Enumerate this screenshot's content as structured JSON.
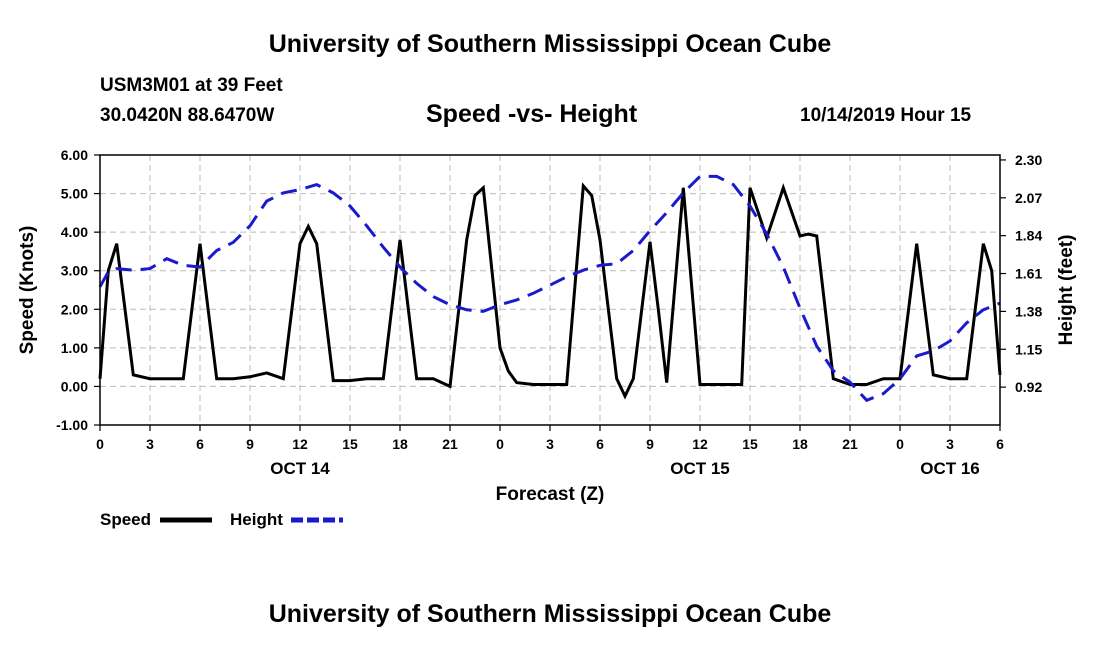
{
  "header": {
    "title": "University of Southern Mississippi Ocean Cube",
    "station": "USM3M01 at 39 Feet",
    "coords": "30.0420N 88.6470W",
    "date": "10/14/2019 Hour 15"
  },
  "footer": {
    "title": "University of Southern Mississippi Ocean Cube"
  },
  "colors": {
    "speed": "#000000",
    "height": "#1a1acc",
    "grid": "#bbbbbb"
  },
  "chart_data": {
    "type": "line",
    "title": "Speed -vs- Height",
    "xlabel": "Forecast (Z)",
    "ylabel": "Speed (Knots)",
    "ylabel_right": "Height (feet)",
    "x_unit": "hours since Oct 14 00Z",
    "xlim": [
      0,
      54
    ],
    "ylim": [
      -1,
      6
    ],
    "ylim_right": [
      0.69,
      2.33
    ],
    "x_ticks": [
      {
        "x": 0,
        "label": "0"
      },
      {
        "x": 3,
        "label": "3"
      },
      {
        "x": 6,
        "label": "6"
      },
      {
        "x": 9,
        "label": "9"
      },
      {
        "x": 12,
        "label": "12"
      },
      {
        "x": 15,
        "label": "15"
      },
      {
        "x": 18,
        "label": "18"
      },
      {
        "x": 21,
        "label": "21"
      },
      {
        "x": 24,
        "label": "0"
      },
      {
        "x": 27,
        "label": "3"
      },
      {
        "x": 30,
        "label": "6"
      },
      {
        "x": 33,
        "label": "9"
      },
      {
        "x": 36,
        "label": "12"
      },
      {
        "x": 39,
        "label": "15"
      },
      {
        "x": 42,
        "label": "18"
      },
      {
        "x": 45,
        "label": "21"
      },
      {
        "x": 48,
        "label": "0"
      },
      {
        "x": 51,
        "label": "3"
      },
      {
        "x": 54,
        "label": "6"
      }
    ],
    "day_labels": [
      {
        "x": 12,
        "label": "OCT 14"
      },
      {
        "x": 36,
        "label": "OCT 15"
      },
      {
        "x": 51,
        "label": "OCT 16"
      }
    ],
    "y_ticks": [
      "-1.00",
      "0.00",
      "1.00",
      "2.00",
      "3.00",
      "4.00",
      "5.00",
      "6.00"
    ],
    "y_ticks_right": [
      "0.92",
      "1.15",
      "1.38",
      "1.61",
      "1.84",
      "2.07",
      "2.30"
    ],
    "legend": [
      {
        "name": "Speed",
        "style": "solid"
      },
      {
        "name": "Height",
        "style": "dashed"
      }
    ],
    "series": [
      {
        "name": "Speed",
        "axis": "left",
        "x": [
          0,
          0.5,
          1,
          2,
          3,
          4,
          5,
          6,
          7,
          8,
          9,
          10,
          11,
          12,
          12.5,
          13,
          14,
          15,
          16,
          17,
          18,
          19,
          20,
          21,
          22,
          22.5,
          23,
          24,
          24.5,
          25,
          26,
          27,
          28,
          29,
          29.5,
          30,
          31,
          31.5,
          32,
          33,
          33.5,
          34,
          35,
          36,
          37,
          38,
          38.5,
          39,
          40,
          41,
          42,
          42.5,
          43,
          44,
          45,
          46,
          47,
          48,
          49,
          50,
          51,
          52,
          53,
          53.5,
          54
        ],
        "values": [
          0.2,
          3.0,
          3.7,
          0.3,
          0.2,
          0.2,
          0.2,
          3.7,
          0.2,
          0.2,
          0.25,
          0.35,
          0.2,
          3.7,
          4.15,
          3.7,
          0.15,
          0.15,
          0.2,
          0.2,
          3.8,
          0.2,
          0.2,
          0.0,
          3.8,
          4.95,
          5.15,
          1.0,
          0.4,
          0.1,
          0.05,
          0.05,
          0.05,
          5.2,
          4.95,
          3.8,
          0.2,
          -0.25,
          0.2,
          3.75,
          2.0,
          0.1,
          5.15,
          0.05,
          0.05,
          0.05,
          0.05,
          5.15,
          3.85,
          5.15,
          3.9,
          3.95,
          3.9,
          0.2,
          0.05,
          0.05,
          0.2,
          0.2,
          3.7,
          0.3,
          0.2,
          0.2,
          3.7,
          3.0,
          0.3
        ]
      },
      {
        "name": "Height",
        "axis": "right",
        "x": [
          0,
          0.5,
          1,
          2,
          3,
          4,
          5,
          6,
          7,
          8,
          9,
          10,
          11,
          12,
          13,
          14,
          15,
          16,
          17,
          18,
          19,
          20,
          21,
          22,
          23,
          24,
          25,
          26,
          27,
          28,
          29,
          30,
          31,
          32,
          33,
          34,
          35,
          36,
          37,
          38,
          39,
          40,
          41,
          42,
          43,
          44,
          45,
          46,
          47,
          48,
          49,
          50,
          51,
          52,
          53,
          54
        ],
        "values": [
          1.53,
          1.62,
          1.64,
          1.63,
          1.64,
          1.7,
          1.66,
          1.65,
          1.75,
          1.8,
          1.9,
          2.05,
          2.1,
          2.12,
          2.15,
          2.1,
          2.02,
          1.9,
          1.77,
          1.65,
          1.55,
          1.47,
          1.42,
          1.39,
          1.38,
          1.42,
          1.45,
          1.49,
          1.54,
          1.59,
          1.63,
          1.66,
          1.67,
          1.75,
          1.87,
          1.98,
          2.1,
          2.2,
          2.2,
          2.15,
          2.02,
          1.85,
          1.65,
          1.4,
          1.17,
          1.02,
          0.95,
          0.84,
          0.88,
          0.97,
          1.11,
          1.14,
          1.2,
          1.31,
          1.39,
          1.43
        ]
      }
    ]
  }
}
